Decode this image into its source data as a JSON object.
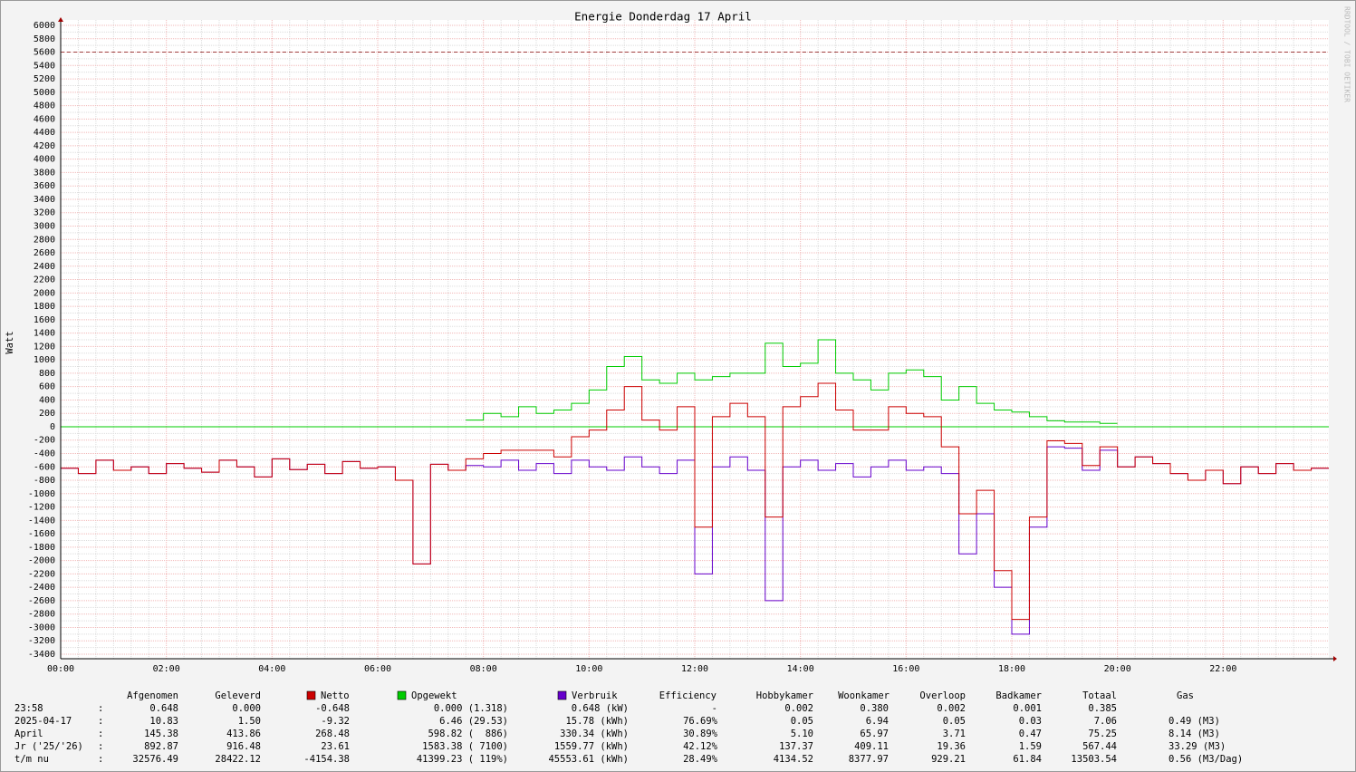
{
  "chart_data": {
    "type": "line",
    "step": true,
    "title": "Energie Donderdag 17 April",
    "y_label": "Watt",
    "watermark": "RRDTOOL / TOBI OETIKER",
    "ylim": [
      -3400,
      6000
    ],
    "yticks": [
      -3400,
      -3200,
      -3000,
      -2800,
      -2600,
      -2400,
      -2200,
      -2000,
      -1800,
      -1600,
      -1400,
      -1200,
      -1000,
      -800,
      -600,
      -400,
      -200,
      0,
      200,
      400,
      600,
      800,
      1000,
      1200,
      1400,
      1600,
      1800,
      2000,
      2200,
      2400,
      2600,
      2800,
      3000,
      3200,
      3400,
      3600,
      3800,
      4000,
      4200,
      4400,
      4600,
      4800,
      5000,
      5200,
      5400,
      5600,
      5800,
      6000
    ],
    "dashed_line": 5600,
    "xlim": [
      0,
      1440
    ],
    "xticks": [
      {
        "value": 0,
        "label": "00:00"
      },
      {
        "value": 120,
        "label": "02:00"
      },
      {
        "value": 240,
        "label": "04:00"
      },
      {
        "value": 360,
        "label": "06:00"
      },
      {
        "value": 480,
        "label": "08:00"
      },
      {
        "value": 600,
        "label": "10:00"
      },
      {
        "value": 720,
        "label": "12:00"
      },
      {
        "value": 840,
        "label": "14:00"
      },
      {
        "value": 960,
        "label": "16:00"
      },
      {
        "value": 1080,
        "label": "18:00"
      },
      {
        "value": 1200,
        "label": "20:00"
      },
      {
        "value": 1320,
        "label": "22:00"
      }
    ],
    "grid": true,
    "x": [
      0,
      20,
      40,
      60,
      80,
      100,
      120,
      140,
      160,
      180,
      200,
      220,
      240,
      260,
      280,
      300,
      320,
      340,
      360,
      380,
      400,
      420,
      440,
      460,
      480,
      500,
      520,
      540,
      560,
      580,
      600,
      620,
      640,
      660,
      680,
      700,
      720,
      740,
      760,
      780,
      800,
      820,
      840,
      860,
      880,
      900,
      920,
      940,
      960,
      980,
      1000,
      1020,
      1040,
      1060,
      1080,
      1100,
      1120,
      1140,
      1160,
      1180,
      1200,
      1220,
      1240,
      1260,
      1280,
      1300,
      1320,
      1340,
      1360,
      1380,
      1400,
      1420
    ],
    "series": [
      {
        "name": "Verbruik",
        "color": "#6600cc",
        "values": [
          -620,
          -700,
          -500,
          -650,
          -600,
          -700,
          -550,
          -620,
          -680,
          -500,
          -600,
          -750,
          -480,
          -640,
          -560,
          -700,
          -520,
          -620,
          -600,
          -800,
          -2050,
          -560,
          -650,
          -580,
          -600,
          -500,
          -650,
          -550,
          -700,
          -500,
          -600,
          -650,
          -450,
          -600,
          -700,
          -500,
          -2200,
          -600,
          -450,
          -650,
          -2600,
          -600,
          -500,
          -650,
          -550,
          -750,
          -600,
          -500,
          -650,
          -600,
          -700,
          -1900,
          -1300,
          -2400,
          -3100,
          -1500,
          -300,
          -320,
          -650,
          -350,
          -600,
          -450,
          -550,
          -700,
          -800,
          -650,
          -850,
          -600,
          -700,
          -550,
          -650,
          -620
        ]
      },
      {
        "name": "Netto",
        "color": "#cc0000",
        "values": [
          -620,
          -700,
          -500,
          -650,
          -600,
          -700,
          -550,
          -620,
          -680,
          -500,
          -600,
          -750,
          -480,
          -640,
          -560,
          -700,
          -520,
          -620,
          -600,
          -800,
          -2050,
          -560,
          -650,
          -480,
          -400,
          -350,
          -350,
          -350,
          -450,
          -150,
          -50,
          250,
          600,
          100,
          -50,
          300,
          -1500,
          150,
          350,
          150,
          -1350,
          300,
          450,
          650,
          250,
          -50,
          -50,
          300,
          200,
          150,
          -300,
          -1300,
          -950,
          -2150,
          -2880,
          -1350,
          -210,
          -250,
          -580,
          -300,
          -600,
          -450,
          -550,
          -700,
          -800,
          -650,
          -850,
          -600,
          -700,
          -550,
          -650,
          -620
        ]
      },
      {
        "name": "Opgewekt",
        "color": "#00cc00",
        "values": [
          null,
          null,
          null,
          null,
          null,
          null,
          null,
          null,
          null,
          null,
          null,
          null,
          null,
          null,
          null,
          null,
          null,
          null,
          null,
          null,
          null,
          null,
          null,
          100,
          200,
          150,
          300,
          200,
          250,
          350,
          550,
          900,
          1050,
          700,
          650,
          800,
          700,
          750,
          800,
          800,
          1250,
          900,
          950,
          1300,
          800,
          700,
          550,
          800,
          850,
          750,
          400,
          600,
          350,
          250,
          220,
          150,
          90,
          70,
          70,
          50,
          null,
          null,
          null,
          null,
          null,
          null,
          null,
          null,
          null,
          null,
          null,
          null
        ]
      }
    ]
  },
  "table": {
    "header": [
      "Afgenomen",
      "Geleverd",
      "Efficiency",
      "Hobbykamer",
      "Woonkamer",
      "Overloop",
      "Badkamer",
      "Totaal",
      "Gas"
    ],
    "rows": [
      [
        "23:58",
        ":",
        "0.648",
        "0.000",
        "-0.648",
        "0.000 (1.318)",
        "0.648 (kW)",
        "-",
        "0.002",
        "0.380",
        "0.002",
        "0.001",
        "0.385"
      ],
      [
        "2025-04-17",
        ":",
        "10.83",
        "1.50",
        "-9.32",
        "6.46 (29.53)",
        "15.78 (kWh)",
        "76.69%",
        "0.05",
        "6.94",
        "0.05",
        "0.03",
        "7.06",
        "0.49 (M3)"
      ],
      [
        "April",
        ":",
        "145.38",
        "413.86",
        "268.48",
        "598.82 (  886)",
        "330.34 (kWh)",
        "30.89%",
        "5.10",
        "65.97",
        "3.71",
        "0.47",
        "75.25",
        "8.14 (M3)"
      ],
      [
        "Jr ('25/'26)",
        ":",
        "892.87",
        "916.48",
        "23.61",
        "1583.38 ( 7100)",
        "1559.77 (kWh)",
        "42.12%",
        "137.37",
        "409.11",
        "19.36",
        "1.59",
        "567.44",
        "33.29 (M3)"
      ],
      [
        "t/m nu",
        ":",
        "32576.49",
        "28422.12",
        "-4154.38",
        "41399.23 ( 119%)",
        "45553.61 (kWh)",
        "28.49%",
        "4134.52",
        "8377.97",
        "929.21",
        "61.84",
        "13503.54",
        "0.56 (M3/Dag)"
      ]
    ]
  }
}
